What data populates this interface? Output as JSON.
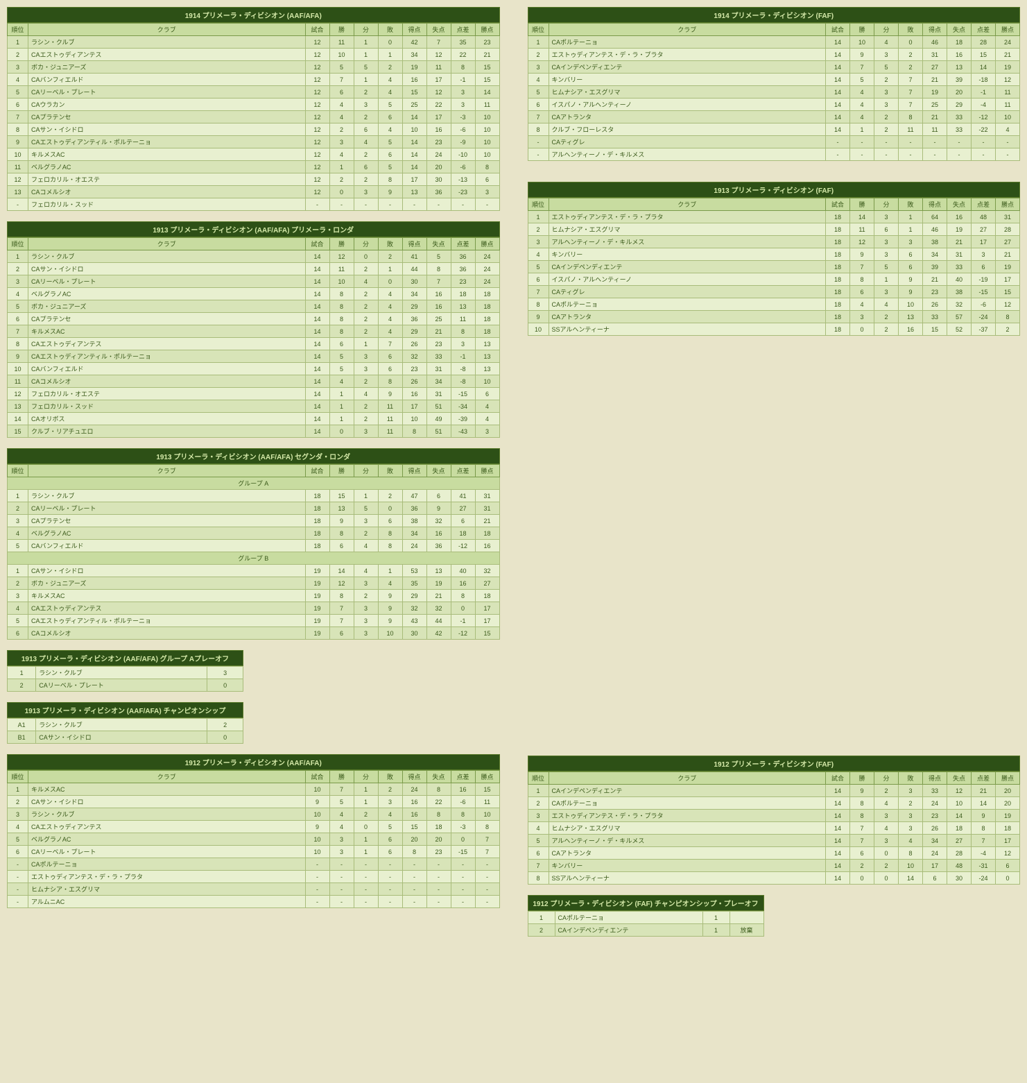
{
  "headers": {
    "pos": "順位",
    "club": "クラブ",
    "gp": "試合",
    "w": "勝",
    "d": "分",
    "l": "敗",
    "gf": "得点",
    "ga": "失点",
    "gd": "点差",
    "pts": "勝点"
  },
  "tables": [
    {
      "title": "1914 プリメーラ・ディビシオン (AAF/AFA)",
      "col": "left",
      "rows": [
        [
          "1",
          "ラシン・クルブ",
          "12",
          "11",
          "1",
          "0",
          "42",
          "7",
          "35",
          "23"
        ],
        [
          "2",
          "CAエストゥディアンテス",
          "12",
          "10",
          "1",
          "1",
          "34",
          "12",
          "22",
          "21"
        ],
        [
          "3",
          "ボカ・ジュニアーズ",
          "12",
          "5",
          "5",
          "2",
          "19",
          "11",
          "8",
          "15"
        ],
        [
          "4",
          "CAバンフィエルド",
          "12",
          "7",
          "1",
          "4",
          "16",
          "17",
          "-1",
          "15"
        ],
        [
          "5",
          "CAリーベル・プレート",
          "12",
          "6",
          "2",
          "4",
          "15",
          "12",
          "3",
          "14"
        ],
        [
          "6",
          "CAウラカン",
          "12",
          "4",
          "3",
          "5",
          "25",
          "22",
          "3",
          "11"
        ],
        [
          "7",
          "CAプラテンセ",
          "12",
          "4",
          "2",
          "6",
          "14",
          "17",
          "-3",
          "10"
        ],
        [
          "8",
          "CAサン・イシドロ",
          "12",
          "2",
          "6",
          "4",
          "10",
          "16",
          "-6",
          "10"
        ],
        [
          "9",
          "CAエストゥディアンティル・ポルテーニョ",
          "12",
          "3",
          "4",
          "5",
          "14",
          "23",
          "-9",
          "10"
        ],
        [
          "10",
          "キルメスAC",
          "12",
          "4",
          "2",
          "6",
          "14",
          "24",
          "-10",
          "10"
        ],
        [
          "11",
          "ベルグラノAC",
          "12",
          "1",
          "6",
          "5",
          "14",
          "20",
          "-6",
          "8"
        ],
        [
          "12",
          "フェロカリル・オエステ",
          "12",
          "2",
          "2",
          "8",
          "17",
          "30",
          "-13",
          "6"
        ],
        [
          "13",
          "CAコメルシオ",
          "12",
          "0",
          "3",
          "9",
          "13",
          "36",
          "-23",
          "3"
        ],
        [
          "-",
          "フェロカリル・スッド",
          "-",
          "-",
          "-",
          "-",
          "-",
          "-",
          "-",
          "-"
        ]
      ]
    },
    {
      "title": "1914 プリメーラ・ディビシオン (FAF)",
      "col": "right",
      "rows": [
        [
          "1",
          "CAポルテーニョ",
          "14",
          "10",
          "4",
          "0",
          "46",
          "18",
          "28",
          "24"
        ],
        [
          "2",
          "エストゥディアンテス・デ・ラ・プラタ",
          "14",
          "9",
          "3",
          "2",
          "31",
          "16",
          "15",
          "21"
        ],
        [
          "3",
          "CAインデペンディエンテ",
          "14",
          "7",
          "5",
          "2",
          "27",
          "13",
          "14",
          "19"
        ],
        [
          "4",
          "キンバリー",
          "14",
          "5",
          "2",
          "7",
          "21",
          "39",
          "-18",
          "12"
        ],
        [
          "5",
          "ヒムナシア・エスグリマ",
          "14",
          "4",
          "3",
          "7",
          "19",
          "20",
          "-1",
          "11"
        ],
        [
          "6",
          "イスパノ・アルヘンティーノ",
          "14",
          "4",
          "3",
          "7",
          "25",
          "29",
          "-4",
          "11"
        ],
        [
          "7",
          "CAアトランタ",
          "14",
          "4",
          "2",
          "8",
          "21",
          "33",
          "-12",
          "10"
        ],
        [
          "8",
          "クルブ・フローレスタ",
          "14",
          "1",
          "2",
          "11",
          "11",
          "33",
          "-22",
          "4"
        ],
        [
          "-",
          "CAティグレ",
          "-",
          "-",
          "-",
          "-",
          "-",
          "-",
          "-",
          "-"
        ],
        [
          "-",
          "アルヘンティーノ・デ・キルメス",
          "-",
          "-",
          "-",
          "-",
          "-",
          "-",
          "-",
          "-"
        ]
      ]
    },
    {
      "title": "1913 プリメーラ・ディビシオン (AAF/AFA) プリメーラ・ロンダ",
      "col": "left",
      "rows": [
        [
          "1",
          "ラシン・クルブ",
          "14",
          "12",
          "0",
          "2",
          "41",
          "5",
          "36",
          "24"
        ],
        [
          "2",
          "CAサン・イシドロ",
          "14",
          "11",
          "2",
          "1",
          "44",
          "8",
          "36",
          "24"
        ],
        [
          "3",
          "CAリーベル・プレート",
          "14",
          "10",
          "4",
          "0",
          "30",
          "7",
          "23",
          "24"
        ],
        [
          "4",
          "ベルグラノAC",
          "14",
          "8",
          "2",
          "4",
          "34",
          "16",
          "18",
          "18"
        ],
        [
          "5",
          "ボカ・ジュニアーズ",
          "14",
          "8",
          "2",
          "4",
          "29",
          "16",
          "13",
          "18"
        ],
        [
          "6",
          "CAプラテンセ",
          "14",
          "8",
          "2",
          "4",
          "36",
          "25",
          "11",
          "18"
        ],
        [
          "7",
          "キルメスAC",
          "14",
          "8",
          "2",
          "4",
          "29",
          "21",
          "8",
          "18"
        ],
        [
          "8",
          "CAエストゥディアンテス",
          "14",
          "6",
          "1",
          "7",
          "26",
          "23",
          "3",
          "13"
        ],
        [
          "9",
          "CAエストゥディアンティル・ポルテーニョ",
          "14",
          "5",
          "3",
          "6",
          "32",
          "33",
          "-1",
          "13"
        ],
        [
          "10",
          "CAバンフィエルド",
          "14",
          "5",
          "3",
          "6",
          "23",
          "31",
          "-8",
          "13"
        ],
        [
          "11",
          "CAコメルシオ",
          "14",
          "4",
          "2",
          "8",
          "26",
          "34",
          "-8",
          "10"
        ],
        [
          "12",
          "フェロカリル・オエステ",
          "14",
          "1",
          "4",
          "9",
          "16",
          "31",
          "-15",
          "6"
        ],
        [
          "13",
          "フェロカリル・スッド",
          "14",
          "1",
          "2",
          "11",
          "17",
          "51",
          "-34",
          "4"
        ],
        [
          "14",
          "CAオリボス",
          "14",
          "1",
          "2",
          "11",
          "10",
          "49",
          "-39",
          "4"
        ],
        [
          "15",
          "クルブ・リアチュエロ",
          "14",
          "0",
          "3",
          "11",
          "8",
          "51",
          "-43",
          "3"
        ]
      ]
    },
    {
      "title": "1913 プリメーラ・ディビシオン (FAF)",
      "col": "right",
      "rows": [
        [
          "1",
          "エストゥディアンテス・デ・ラ・プラタ",
          "18",
          "14",
          "3",
          "1",
          "64",
          "16",
          "48",
          "31"
        ],
        [
          "2",
          "ヒムナシア・エスグリマ",
          "18",
          "11",
          "6",
          "1",
          "46",
          "19",
          "27",
          "28"
        ],
        [
          "3",
          "アルヘンティーノ・デ・キルメス",
          "18",
          "12",
          "3",
          "3",
          "38",
          "21",
          "17",
          "27"
        ],
        [
          "4",
          "キンバリー",
          "18",
          "9",
          "3",
          "6",
          "34",
          "31",
          "3",
          "21"
        ],
        [
          "5",
          "CAインデペンディエンテ",
          "18",
          "7",
          "5",
          "6",
          "39",
          "33",
          "6",
          "19"
        ],
        [
          "6",
          "イスパノ・アルヘンティーノ",
          "18",
          "8",
          "1",
          "9",
          "21",
          "40",
          "-19",
          "17"
        ],
        [
          "7",
          "CAティグレ",
          "18",
          "6",
          "3",
          "9",
          "23",
          "38",
          "-15",
          "15"
        ],
        [
          "8",
          "CAポルテーニョ",
          "18",
          "4",
          "4",
          "10",
          "26",
          "32",
          "-6",
          "12"
        ],
        [
          "9",
          "CAアトランタ",
          "18",
          "3",
          "2",
          "13",
          "33",
          "57",
          "-24",
          "8"
        ],
        [
          "10",
          "SSアルヘンティーナ",
          "18",
          "0",
          "2",
          "16",
          "15",
          "52",
          "-37",
          "2"
        ]
      ]
    },
    {
      "title": "1913 プリメーラ・ディビシオン (AAF/AFA) セグンダ・ロンダ",
      "col": "left",
      "groups": [
        {
          "name": "グループ A",
          "rows": [
            [
              "1",
              "ラシン・クルブ",
              "18",
              "15",
              "1",
              "2",
              "47",
              "6",
              "41",
              "31"
            ],
            [
              "2",
              "CAリーベル・プレート",
              "18",
              "13",
              "5",
              "0",
              "36",
              "9",
              "27",
              "31"
            ],
            [
              "3",
              "CAプラテンセ",
              "18",
              "9",
              "3",
              "6",
              "38",
              "32",
              "6",
              "21"
            ],
            [
              "4",
              "ベルグラノAC",
              "18",
              "8",
              "2",
              "8",
              "34",
              "16",
              "18",
              "18"
            ],
            [
              "5",
              "CAバンフィエルド",
              "18",
              "6",
              "4",
              "8",
              "24",
              "36",
              "-12",
              "16"
            ]
          ]
        },
        {
          "name": "グループ B",
          "rows": [
            [
              "1",
              "CAサン・イシドロ",
              "19",
              "14",
              "4",
              "1",
              "53",
              "13",
              "40",
              "32"
            ],
            [
              "2",
              "ボカ・ジュニアーズ",
              "19",
              "12",
              "3",
              "4",
              "35",
              "19",
              "16",
              "27"
            ],
            [
              "3",
              "キルメスAC",
              "19",
              "8",
              "2",
              "9",
              "29",
              "21",
              "8",
              "18"
            ],
            [
              "4",
              "CAエストゥディアンテス",
              "19",
              "7",
              "3",
              "9",
              "32",
              "32",
              "0",
              "17"
            ],
            [
              "5",
              "CAエストゥディアンティル・ポルテーニョ",
              "19",
              "7",
              "3",
              "9",
              "43",
              "44",
              "-1",
              "17"
            ],
            [
              "6",
              "CAコメルシオ",
              "19",
              "6",
              "3",
              "10",
              "30",
              "42",
              "-12",
              "15"
            ]
          ]
        }
      ]
    },
    {
      "title": "1913 プリメーラ・ディビシオン (AAF/AFA) グループ Aプレーオフ",
      "col": "left",
      "type": "mini",
      "rows": [
        [
          "1",
          "ラシン・クルブ",
          "3"
        ],
        [
          "2",
          "CAリーベル・プレート",
          "0"
        ]
      ]
    },
    {
      "title": "1913 プリメーラ・ディビシオン (AAF/AFA) チャンピオンシップ",
      "col": "left",
      "type": "mini",
      "rows": [
        [
          "A1",
          "ラシン・クルブ",
          "2"
        ],
        [
          "B1",
          "CAサン・イシドロ",
          "0"
        ]
      ]
    },
    {
      "title": "1912 プリメーラ・ディビシオン (AAF/AFA)",
      "col": "left",
      "rows": [
        [
          "1",
          "キルメスAC",
          "10",
          "7",
          "1",
          "2",
          "24",
          "8",
          "16",
          "15"
        ],
        [
          "2",
          "CAサン・イシドロ",
          "9",
          "5",
          "1",
          "3",
          "16",
          "22",
          "-6",
          "11"
        ],
        [
          "3",
          "ラシン・クルブ",
          "10",
          "4",
          "2",
          "4",
          "16",
          "8",
          "8",
          "10"
        ],
        [
          "4",
          "CAエストゥディアンテス",
          "9",
          "4",
          "0",
          "5",
          "15",
          "18",
          "-3",
          "8"
        ],
        [
          "5",
          "ベルグラノAC",
          "10",
          "3",
          "1",
          "6",
          "20",
          "20",
          "0",
          "7"
        ],
        [
          "6",
          "CAリーベル・プレート",
          "10",
          "3",
          "1",
          "6",
          "8",
          "23",
          "-15",
          "7"
        ],
        [
          "-",
          "CAポルテーニョ",
          "-",
          "-",
          "-",
          "-",
          "-",
          "-",
          "-",
          "-"
        ],
        [
          "-",
          "エストゥディアンテス・デ・ラ・プラタ",
          "-",
          "-",
          "-",
          "-",
          "-",
          "-",
          "-",
          "-"
        ],
        [
          "-",
          "ヒムナシア・エスグリマ",
          "-",
          "-",
          "-",
          "-",
          "-",
          "-",
          "-",
          "-"
        ],
        [
          "-",
          "アルムニAC",
          "-",
          "-",
          "-",
          "-",
          "-",
          "-",
          "-",
          "-"
        ]
      ]
    },
    {
      "title": "1912 プリメーラ・ディビシオン (FAF)",
      "col": "right",
      "rows": [
        [
          "1",
          "CAインデペンディエンテ",
          "14",
          "9",
          "2",
          "3",
          "33",
          "12",
          "21",
          "20"
        ],
        [
          "2",
          "CAポルテーニョ",
          "14",
          "8",
          "4",
          "2",
          "24",
          "10",
          "14",
          "20"
        ],
        [
          "3",
          "エストゥディアンテス・デ・ラ・プラタ",
          "14",
          "8",
          "3",
          "3",
          "23",
          "14",
          "9",
          "19"
        ],
        [
          "4",
          "ヒムナシア・エスグリマ",
          "14",
          "7",
          "4",
          "3",
          "26",
          "18",
          "8",
          "18"
        ],
        [
          "5",
          "アルヘンティーノ・デ・キルメス",
          "14",
          "7",
          "3",
          "4",
          "34",
          "27",
          "7",
          "17"
        ],
        [
          "6",
          "CAアトランタ",
          "14",
          "6",
          "0",
          "8",
          "24",
          "28",
          "-4",
          "12"
        ],
        [
          "7",
          "キンバリー",
          "14",
          "2",
          "2",
          "10",
          "17",
          "48",
          "-31",
          "6"
        ],
        [
          "8",
          "SSアルヘンティーナ",
          "14",
          "0",
          "0",
          "14",
          "6",
          "30",
          "-24",
          "0"
        ]
      ]
    },
    {
      "title": "1912 プリメーラ・ディビシオン (FAF) チャンピオンシップ・プレーオフ",
      "col": "right",
      "type": "mini2",
      "rows": [
        [
          "1",
          "CAポルテーニョ",
          "1",
          ""
        ],
        [
          "2",
          "CAインデペンディエンテ",
          "1",
          "放棄"
        ]
      ]
    }
  ]
}
